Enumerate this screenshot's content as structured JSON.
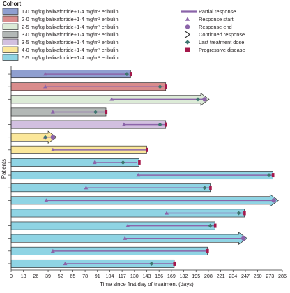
{
  "chart_data": {
    "type": "swimmer",
    "title": "",
    "xlabel": "Time since first day of treatment (days)",
    "ylabel": "Patients",
    "xlim": [
      0,
      286
    ],
    "xticks": [
      0,
      13,
      26,
      39,
      52,
      65,
      78,
      91,
      104,
      117,
      130,
      143,
      156,
      169,
      182,
      195,
      208,
      221,
      234,
      247,
      260,
      273,
      286
    ],
    "legend_cohort": {
      "title": "Cohort",
      "items": [
        {
          "label": "1·0 mg/kg balixafortide+1·4 mg/m² eribulin",
          "color": "#8f9fd0"
        },
        {
          "label": "2·0 mg/kg balixafortide+1·4 mg/m² eribulin",
          "color": "#d98c8c"
        },
        {
          "label": "2·5 mg/kg balixafortide+1·4 mg/m² eribulin",
          "color": "#dcebd7"
        },
        {
          "label": "3·0 mg/kg balixafortide+1·4 mg/m² eribulin",
          "color": "#b3b8b6"
        },
        {
          "label": "3·5 mg/kg balixafortide+1·4 mg/m² eribulin",
          "color": "#d2c0e0"
        },
        {
          "label": "4·0 mg/kg balixafortide+1·4 mg/m² eribulin",
          "color": "#fbe79a"
        },
        {
          "label": "5·5 mg/kg balixafortide+1·4 mg/m² eribulin",
          "color": "#8fd4e4"
        }
      ]
    },
    "legend_markers": [
      {
        "label": "Partial response",
        "symbol": "line"
      },
      {
        "label": "Response start",
        "symbol": "triangle"
      },
      {
        "label": "Response end",
        "symbol": "circle"
      },
      {
        "label": "Continued response",
        "symbol": "arrow"
      },
      {
        "label": "Last treatment dose",
        "symbol": "diamond"
      },
      {
        "label": "Progressive disease",
        "symbol": "square"
      }
    ],
    "colors": {
      "partial_response": "#8b64a9",
      "marker": "#8b64a9",
      "diamond": "#3f7570",
      "progressive": "#a4174a",
      "bar_edge": "#333333"
    },
    "patients": [
      {
        "cohort": 1,
        "end": 126,
        "pr_start": 36,
        "pr_end": 124,
        "last_dose": 122,
        "continued": false,
        "progressive": true
      },
      {
        "cohort": 2,
        "end": 163,
        "pr_start": 36,
        "pr_end": 161,
        "last_dose": 157,
        "continued": false,
        "progressive": true
      },
      {
        "cohort": 3,
        "end": 200,
        "pr_start": 106,
        "pr_end": 204,
        "last_dose": 197,
        "continued": true,
        "progressive": false
      },
      {
        "cohort": 4,
        "end": 100,
        "pr_start": 44,
        "pr_end": 100,
        "last_dose": 89,
        "continued": false,
        "progressive": true
      },
      {
        "cohort": 5,
        "end": 163,
        "pr_start": 119,
        "pr_end": 163,
        "last_dose": 157,
        "continued": false,
        "progressive": true
      },
      {
        "cohort": 6,
        "end": 39,
        "pr_start": 36,
        "pr_end": 44,
        "last_dose": 36,
        "continued": true,
        "progressive": false
      },
      {
        "cohort": 6,
        "end": 143,
        "pr_start": 44,
        "pr_end": 143,
        "last_dose": null,
        "continued": false,
        "progressive": true
      },
      {
        "cohort": 7,
        "end": 135,
        "pr_start": 88,
        "pr_end": 133,
        "last_dose": 118,
        "continued": false,
        "progressive": true
      },
      {
        "cohort": 7,
        "end": 276,
        "pr_start": 134,
        "pr_end": 275,
        "last_dose": 272,
        "continued": false,
        "progressive": true
      },
      {
        "cohort": 7,
        "end": 210,
        "pr_start": 79,
        "pr_end": 209,
        "last_dose": 204,
        "continued": false,
        "progressive": true
      },
      {
        "cohort": 7,
        "end": 273,
        "pr_start": 37,
        "pr_end": 277,
        "last_dose": null,
        "continued": true,
        "progressive": false
      },
      {
        "cohort": 7,
        "end": 246,
        "pr_start": 164,
        "pr_end": 245,
        "last_dose": 240,
        "continued": false,
        "progressive": true
      },
      {
        "cohort": 7,
        "end": 215,
        "pr_start": 123,
        "pr_end": 214,
        "last_dose": 210,
        "continued": false,
        "progressive": true
      },
      {
        "cohort": 7,
        "end": 240,
        "pr_start": 120,
        "pr_end": 245,
        "last_dose": null,
        "continued": true,
        "progressive": false
      },
      {
        "cohort": 7,
        "end": 207,
        "pr_start": 44,
        "pr_end": 206,
        "last_dose": null,
        "continued": false,
        "progressive": true
      },
      {
        "cohort": 7,
        "end": 172,
        "pr_start": 57,
        "pr_end": 171,
        "last_dose": 148,
        "continued": false,
        "progressive": true
      }
    ]
  }
}
